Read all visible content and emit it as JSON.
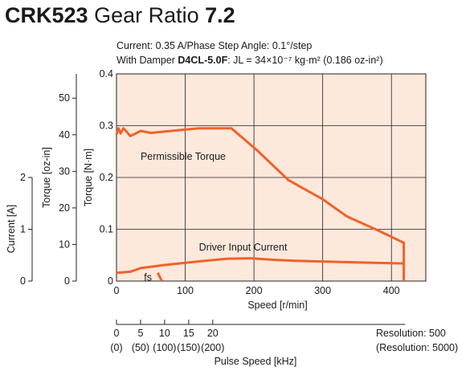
{
  "title": {
    "model": "CRK523",
    "middle": "Gear Ratio",
    "ratio": "7.2"
  },
  "subtitle": {
    "line1": "Current: 0.35 A/Phase  Step Angle: 0.1°/step",
    "line2_prefix": "With Damper ",
    "damper": "D4CL-5.0F",
    "line2_suffix": ": JL = 34×10⁻⁷ kg·m² (0.186 oz-in²)"
  },
  "colors": {
    "plot_bg": "#fde8dc",
    "curve": "#f0622a",
    "grid": "#222222",
    "axis": "#222222"
  },
  "chart_data": {
    "type": "line",
    "x": {
      "label": "Speed [r/min]",
      "ticks": [
        0,
        100,
        200,
        300,
        400
      ],
      "range": [
        0,
        450
      ]
    },
    "y_nm": {
      "label": "Torque [N·m]",
      "ticks": [
        0,
        0.1,
        0.2,
        0.3,
        0.4
      ],
      "tick_labels": [
        "0",
        "0.1",
        "0.2",
        "0.3",
        "0.4"
      ],
      "range": [
        0,
        0.4
      ]
    },
    "y_ozin": {
      "label": "Torque [oz-in]",
      "ticks": [
        0,
        10,
        20,
        30,
        40,
        50
      ],
      "per_nm": 141.6
    },
    "y_current": {
      "label": "Current [A]",
      "ticks": [
        0,
        1,
        2
      ],
      "range": [
        0,
        2
      ]
    },
    "pulse_axis": {
      "label": "Pulse Speed [kHz]",
      "ticks": [
        0,
        5,
        10,
        15,
        20
      ],
      "tick_labels": [
        "0",
        "5",
        "10",
        "15",
        "20"
      ],
      "alt_tick_labels": [
        "(0)",
        "(50)",
        "(100)",
        "(150)",
        "(200)"
      ],
      "rpm_per_khz": 7.0,
      "note1": "Resolution: 500",
      "note2": "(Resolution: 5000)"
    },
    "series": [
      {
        "name": "Permissible Torque",
        "axis": "torque",
        "points": [
          [
            0,
            0.283
          ],
          [
            3,
            0.295
          ],
          [
            6,
            0.285
          ],
          [
            10,
            0.295
          ],
          [
            15,
            0.288
          ],
          [
            20,
            0.28
          ],
          [
            25,
            0.283
          ],
          [
            35,
            0.29
          ],
          [
            50,
            0.286
          ],
          [
            80,
            0.29
          ],
          [
            120,
            0.295
          ],
          [
            167,
            0.295
          ],
          [
            205,
            0.252
          ],
          [
            250,
            0.195
          ],
          [
            300,
            0.158
          ],
          [
            335,
            0.125
          ],
          [
            380,
            0.098
          ],
          [
            418,
            0.074
          ],
          [
            418,
            0
          ]
        ]
      },
      {
        "name": "Driver Input Current",
        "axis": "current",
        "points": [
          [
            0,
            0.16
          ],
          [
            20,
            0.18
          ],
          [
            35,
            0.25
          ],
          [
            70,
            0.31
          ],
          [
            120,
            0.38
          ],
          [
            160,
            0.43
          ],
          [
            195,
            0.44
          ],
          [
            230,
            0.41
          ],
          [
            260,
            0.39
          ],
          [
            320,
            0.37
          ],
          [
            380,
            0.35
          ],
          [
            418,
            0.34
          ]
        ]
      },
      {
        "name": "fs",
        "axis": "torque",
        "points": [
          [
            60,
            0.016
          ],
          [
            66,
            0
          ]
        ]
      }
    ],
    "annotations": [
      {
        "text": "Permissible Torque",
        "at": [
          35,
          0.24
        ]
      },
      {
        "text": "Driver Input Current",
        "at": [
          120,
          0.065
        ]
      },
      {
        "text": "fs",
        "at": [
          40,
          0.007
        ]
      }
    ]
  }
}
